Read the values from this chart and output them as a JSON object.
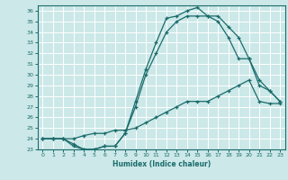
{
  "xlabel": "Humidex (Indice chaleur)",
  "bg_color": "#cce8e8",
  "line_color": "#1a6b6b",
  "grid_color": "#ffffff",
  "xlim": [
    -0.5,
    23.5
  ],
  "ylim": [
    23,
    36.5
  ],
  "xticks": [
    0,
    1,
    2,
    3,
    4,
    5,
    6,
    7,
    8,
    9,
    10,
    11,
    12,
    13,
    14,
    15,
    16,
    17,
    18,
    19,
    20,
    21,
    22,
    23
  ],
  "yticks": [
    23,
    24,
    25,
    26,
    27,
    28,
    29,
    30,
    31,
    32,
    33,
    34,
    35,
    36
  ],
  "curve1_x": [
    0,
    1,
    2,
    3,
    4,
    5,
    6,
    7,
    8,
    9,
    10,
    11,
    12,
    13,
    14,
    15,
    16,
    17,
    18,
    19,
    20,
    21,
    22,
    23
  ],
  "curve1_y": [
    24.0,
    24.0,
    24.0,
    23.3,
    23.0,
    23.0,
    23.3,
    23.3,
    24.5,
    27.5,
    30.5,
    33.0,
    35.3,
    35.5,
    36.0,
    36.3,
    35.5,
    35.5,
    34.5,
    33.5,
    31.5,
    29.5,
    28.5,
    27.5
  ],
  "curve2_x": [
    0,
    1,
    2,
    3,
    4,
    5,
    6,
    7,
    8,
    9,
    10,
    11,
    12,
    13,
    14,
    15,
    16,
    17,
    18,
    19,
    20,
    21,
    22,
    23
  ],
  "curve2_y": [
    24.0,
    24.0,
    24.0,
    23.5,
    23.0,
    23.0,
    23.3,
    23.3,
    24.5,
    27.0,
    30.0,
    32.0,
    34.0,
    35.0,
    35.5,
    35.5,
    35.5,
    35.0,
    33.5,
    31.5,
    31.5,
    29.0,
    28.5,
    27.5
  ],
  "curve3_x": [
    0,
    1,
    2,
    3,
    4,
    5,
    6,
    7,
    8,
    9,
    10,
    11,
    12,
    13,
    14,
    15,
    16,
    17,
    18,
    19,
    20,
    21,
    22,
    23
  ],
  "curve3_y": [
    24.0,
    24.0,
    24.0,
    24.0,
    24.3,
    24.5,
    24.5,
    24.8,
    24.8,
    25.0,
    25.5,
    26.0,
    26.5,
    27.0,
    27.5,
    27.5,
    27.5,
    28.0,
    28.5,
    29.0,
    29.5,
    27.5,
    27.3,
    27.3
  ]
}
